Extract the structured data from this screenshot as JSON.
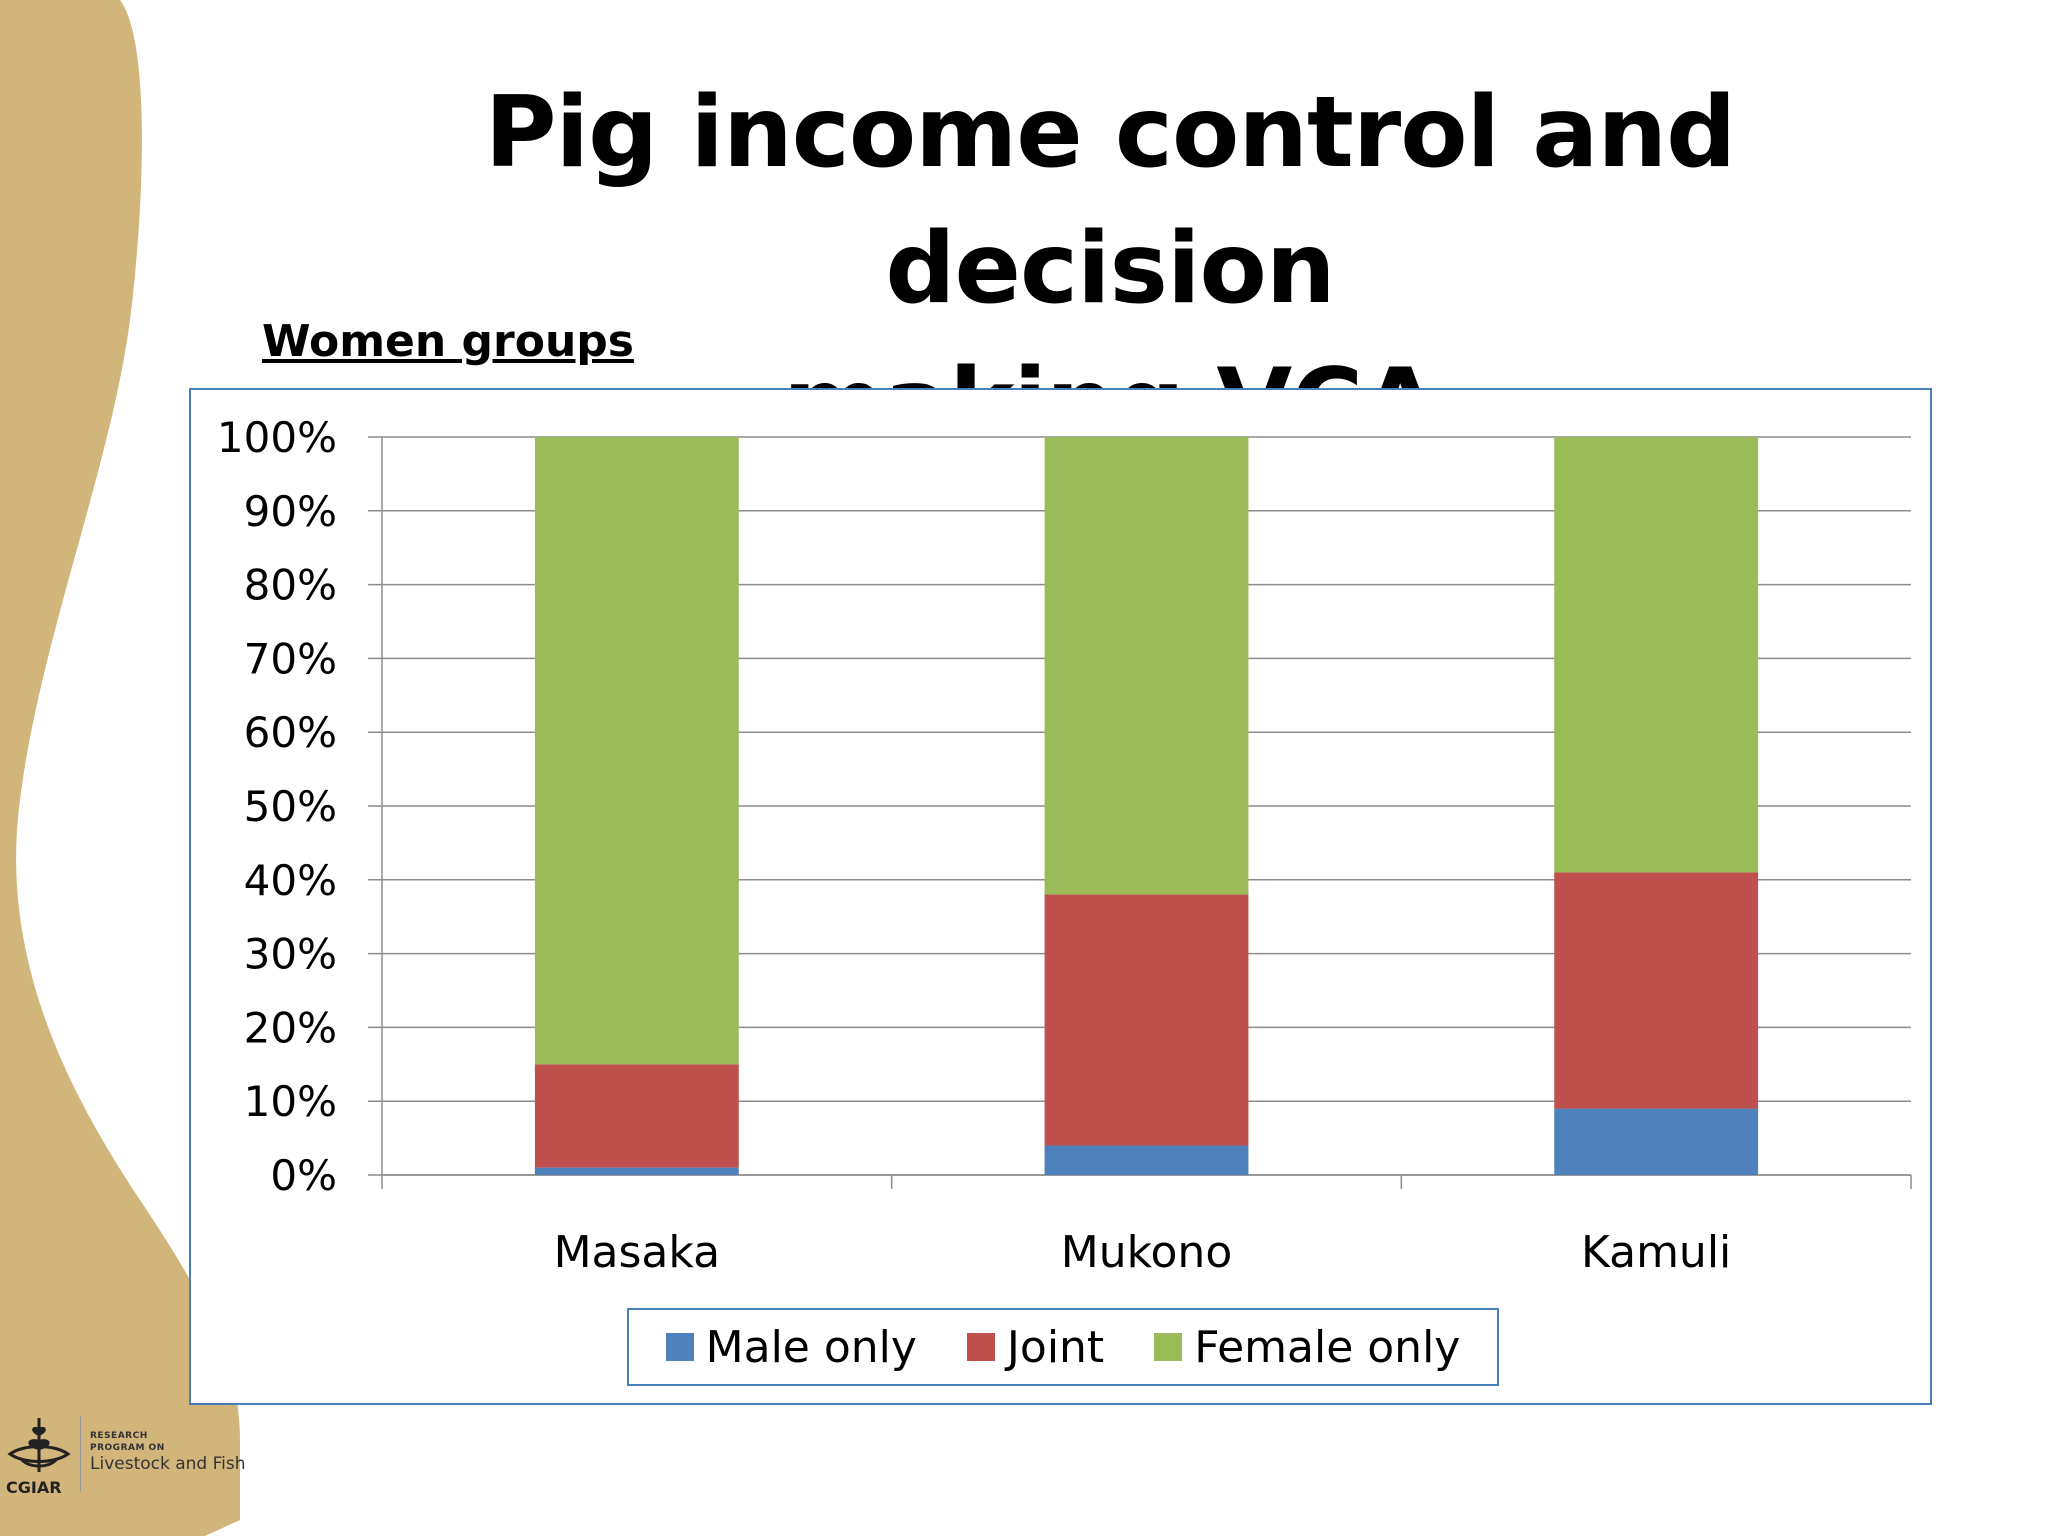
{
  "slide": {
    "title_line1": "Pig income control and decision",
    "title_line2": "making-VCA",
    "subtitle": "Women groups"
  },
  "logo": {
    "org": "CGIAR",
    "program_line1": "RESEARCH",
    "program_line2": "PROGRAM ON",
    "program_name": "Livestock and Fish"
  },
  "colors": {
    "male_only": "#4f81bd",
    "joint": "#c0504d",
    "female_only": "#9bbb59",
    "decor_band": "#d1b57a",
    "frame_border": "#4a7ebb"
  },
  "chart_data": {
    "type": "bar",
    "stacked": true,
    "percent": true,
    "categories": [
      "Masaka",
      "Mukono",
      "Kamuli"
    ],
    "series": [
      {
        "name": "Male only",
        "values": [
          1,
          4,
          9
        ]
      },
      {
        "name": "Joint",
        "values": [
          14,
          34,
          32
        ]
      },
      {
        "name": "Female only",
        "values": [
          85,
          62,
          59
        ]
      }
    ],
    "yticks": [
      "0%",
      "10%",
      "20%",
      "30%",
      "40%",
      "50%",
      "60%",
      "70%",
      "80%",
      "90%",
      "100%"
    ],
    "ylim": [
      0,
      100
    ],
    "grid": true,
    "legend": "bottom"
  }
}
